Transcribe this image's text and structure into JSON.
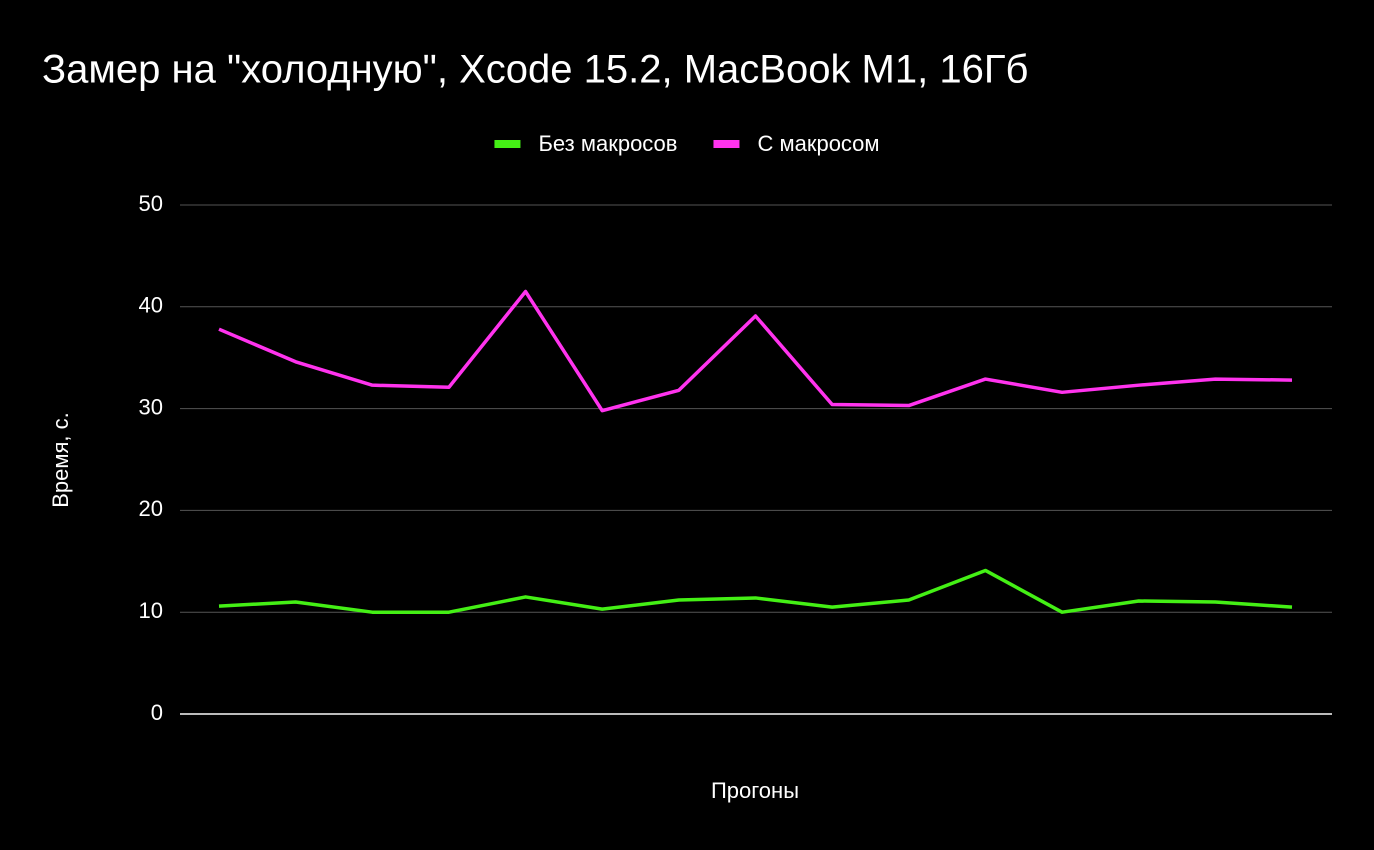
{
  "chart_data": {
    "type": "line",
    "title": "Замер на \"холодную\", Xcode 15.2, MacBook M1, 16Гб",
    "x_label": "Прогоны",
    "y_label": "Время, с.",
    "categories": [
      null,
      null,
      null,
      null,
      null,
      null,
      null,
      null,
      null,
      null,
      null,
      null,
      null,
      null,
      null
    ],
    "series": [
      {
        "name": "Без макросов",
        "color": "#44f015",
        "values": [
          10.6,
          11.0,
          10.0,
          10.0,
          11.5,
          10.3,
          11.2,
          11.4,
          10.5,
          11.2,
          14.1,
          10.0,
          11.1,
          11.0,
          10.5
        ]
      },
      {
        "name": "С макросом",
        "color": "#ff33ee",
        "values": [
          37.8,
          34.6,
          32.3,
          32.1,
          41.5,
          29.8,
          31.8,
          39.1,
          30.4,
          30.3,
          32.9,
          31.6,
          32.3,
          32.9,
          32.8
        ]
      }
    ],
    "ylim": [
      0,
      50
    ],
    "yticks": [
      0,
      10,
      20,
      30,
      40,
      50
    ],
    "grid": true,
    "legend": "top"
  }
}
